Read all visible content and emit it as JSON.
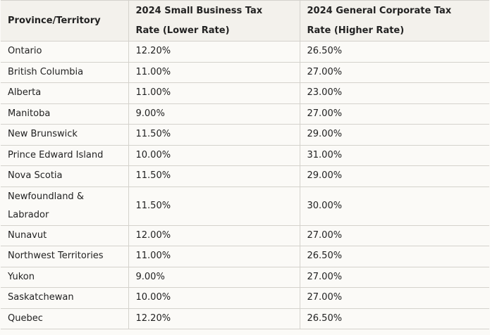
{
  "table": {
    "headers": [
      "Province/Territory",
      "2024 Small Business Tax Rate (Lower Rate)",
      "2024 General Corporate Tax Rate (Higher Rate)"
    ],
    "rows": [
      [
        "Ontario",
        "12.20%",
        "26.50%"
      ],
      [
        "British Columbia",
        "11.00%",
        "27.00%"
      ],
      [
        "Alberta",
        "11.00%",
        "23.00%"
      ],
      [
        "Manitoba",
        "9.00%",
        "27.00%"
      ],
      [
        "New Brunswick",
        "11.50%",
        "29.00%"
      ],
      [
        "Prince Edward Island",
        "10.00%",
        "31.00%"
      ],
      [
        "Nova Scotia",
        "11.50%",
        "29.00%"
      ],
      [
        "Newfoundland & Labrador",
        "11.50%",
        "30.00%"
      ],
      [
        "Nunavut",
        "12.00%",
        "27.00%"
      ],
      [
        "Northwest Territories",
        "11.00%",
        "26.50%"
      ],
      [
        "Yukon",
        "9.00%",
        "27.00%"
      ],
      [
        "Saskatchewan",
        "10.00%",
        "27.00%"
      ],
      [
        "Quebec",
        "12.20%",
        "26.50%"
      ]
    ]
  }
}
